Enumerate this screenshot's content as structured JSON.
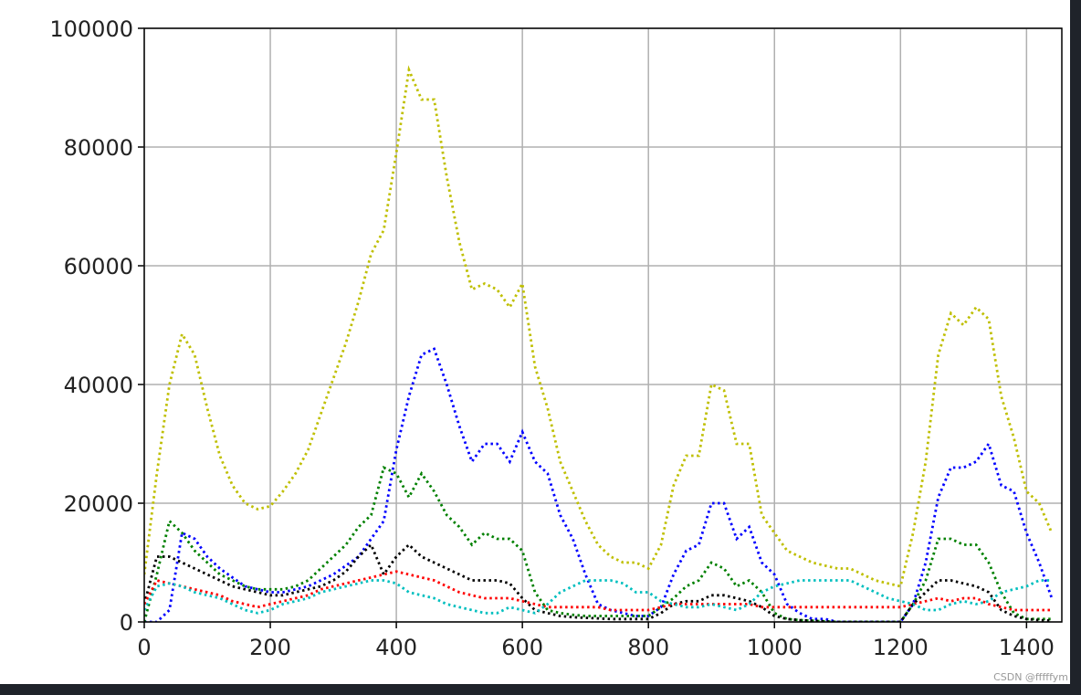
{
  "chart_data": {
    "type": "line",
    "grid": true,
    "line_style": "dotted",
    "xlim": [
      0,
      1456
    ],
    "xticks": [
      0,
      200,
      400,
      600,
      800,
      1000,
      1200,
      1400
    ],
    "ylim": [
      0,
      100000
    ],
    "yticks": [
      0,
      20000,
      40000,
      60000,
      80000,
      100000
    ],
    "x": [
      0,
      20,
      40,
      60,
      80,
      100,
      120,
      140,
      160,
      180,
      200,
      220,
      240,
      260,
      280,
      300,
      320,
      340,
      360,
      380,
      400,
      420,
      440,
      460,
      480,
      500,
      520,
      540,
      560,
      580,
      600,
      620,
      640,
      660,
      680,
      700,
      720,
      740,
      760,
      780,
      800,
      820,
      840,
      860,
      880,
      900,
      920,
      940,
      960,
      980,
      1000,
      1020,
      1040,
      1060,
      1080,
      1100,
      1120,
      1140,
      1160,
      1180,
      1200,
      1220,
      1240,
      1260,
      1280,
      1300,
      1320,
      1340,
      1360,
      1380,
      1400,
      1420,
      1440
    ],
    "series": [
      {
        "color": "#bfbf00",
        "values": [
          8000,
          25000,
          40000,
          48500,
          45000,
          36000,
          28000,
          23000,
          20000,
          19000,
          19500,
          22000,
          25000,
          29000,
          35000,
          41000,
          47000,
          54000,
          62000,
          66000,
          79000,
          93000,
          88000,
          88000,
          75000,
          64000,
          56000,
          57000,
          56000,
          53000,
          57000,
          43000,
          36000,
          27000,
          22000,
          17000,
          13000,
          11000,
          10000,
          10000,
          9000,
          13000,
          23000,
          28000,
          28000,
          40000,
          39000,
          30000,
          30000,
          18000,
          15000,
          12000,
          11000,
          10000,
          9500,
          9000,
          9000,
          8000,
          7000,
          6500,
          6000,
          15000,
          27000,
          45000,
          52000,
          50000,
          53000,
          51000,
          38000,
          31000,
          22000,
          20000,
          15000
        ]
      },
      {
        "color": "#0000ff",
        "values": [
          0,
          0,
          2000,
          15000,
          14000,
          11000,
          9000,
          7500,
          6000,
          5500,
          5000,
          5000,
          5500,
          6000,
          7000,
          8000,
          9500,
          11000,
          14000,
          17000,
          29000,
          38000,
          45000,
          46000,
          40000,
          33000,
          27000,
          30000,
          30000,
          27000,
          32000,
          27000,
          25000,
          18000,
          14000,
          8000,
          3000,
          2000,
          1500,
          1000,
          1000,
          2500,
          8000,
          12000,
          13000,
          20000,
          20000,
          14000,
          16000,
          10000,
          8000,
          3000,
          1500,
          500,
          500,
          0,
          0,
          0,
          0,
          0,
          0,
          3000,
          10000,
          21000,
          26000,
          26000,
          27000,
          30000,
          23000,
          22000,
          15000,
          10000,
          4000
        ]
      },
      {
        "color": "#008000",
        "values": [
          0,
          8000,
          17000,
          15000,
          12000,
          10000,
          8000,
          7000,
          6000,
          5500,
          5500,
          5500,
          6000,
          7000,
          9000,
          11000,
          13000,
          16000,
          18000,
          26000,
          25000,
          21000,
          25000,
          22000,
          18000,
          16000,
          13000,
          15000,
          14000,
          14000,
          12000,
          5000,
          2000,
          1500,
          1200,
          1000,
          1000,
          1000,
          1000,
          1000,
          1000,
          2500,
          4000,
          6000,
          7000,
          10000,
          9000,
          6000,
          7000,
          5000,
          1500,
          500,
          300,
          200,
          100,
          0,
          0,
          0,
          0,
          0,
          0,
          3000,
          7000,
          14000,
          14000,
          13000,
          13000,
          10000,
          5000,
          1500,
          500,
          500,
          500
        ]
      },
      {
        "color": "#000000",
        "values": [
          3000,
          11000,
          11000,
          10000,
          9000,
          8000,
          7000,
          6000,
          5500,
          5000,
          4500,
          4500,
          5000,
          5500,
          6000,
          7000,
          8500,
          11000,
          13000,
          8000,
          11000,
          13000,
          11000,
          10000,
          9000,
          8000,
          7000,
          7000,
          7000,
          6500,
          4000,
          2000,
          1500,
          1000,
          800,
          700,
          600,
          500,
          500,
          500,
          500,
          1500,
          3000,
          3500,
          3500,
          4500,
          4500,
          4000,
          3500,
          2500,
          1000,
          500,
          300,
          200,
          100,
          0,
          0,
          0,
          0,
          0,
          0,
          3000,
          5000,
          7000,
          7000,
          6500,
          6000,
          5000,
          2000,
          1000,
          500,
          300,
          200
        ]
      },
      {
        "color": "#ff0000",
        "values": [
          3000,
          7000,
          6500,
          6000,
          5500,
          5000,
          4500,
          3500,
          3000,
          2500,
          3000,
          3500,
          4000,
          4500,
          5500,
          6000,
          6500,
          7000,
          7500,
          8000,
          8500,
          8000,
          7500,
          7000,
          6000,
          5000,
          4500,
          4000,
          4000,
          4000,
          3500,
          3000,
          2500,
          2500,
          2500,
          2500,
          2500,
          2000,
          2000,
          2000,
          2000,
          2500,
          3000,
          3000,
          3000,
          3000,
          3000,
          3000,
          3000,
          2500,
          2500,
          2500,
          2500,
          2500,
          2500,
          2500,
          2500,
          2500,
          2500,
          2500,
          2500,
          3000,
          3500,
          4000,
          3500,
          4000,
          4000,
          3000,
          2500,
          2000,
          2000,
          2000,
          2000
        ]
      },
      {
        "color": "#00bfbf",
        "values": [
          2000,
          6000,
          6500,
          6000,
          5000,
          4500,
          4000,
          3000,
          2000,
          1500,
          2000,
          3000,
          3500,
          4000,
          5000,
          5500,
          6000,
          6500,
          7000,
          7000,
          6500,
          5000,
          4500,
          4000,
          3000,
          2500,
          2000,
          1500,
          1500,
          2500,
          2000,
          1500,
          3000,
          5000,
          6000,
          7000,
          7000,
          7000,
          6500,
          5000,
          5000,
          3500,
          3000,
          2500,
          2500,
          3000,
          2500,
          2000,
          3000,
          5000,
          6000,
          6500,
          7000,
          7000,
          7000,
          7000,
          7000,
          6000,
          5000,
          4000,
          3500,
          3000,
          2000,
          2000,
          3000,
          3500,
          3000,
          3500,
          5000,
          5500,
          6000,
          7000,
          7000
        ]
      }
    ]
  },
  "watermark": "CSDN @fffffym"
}
